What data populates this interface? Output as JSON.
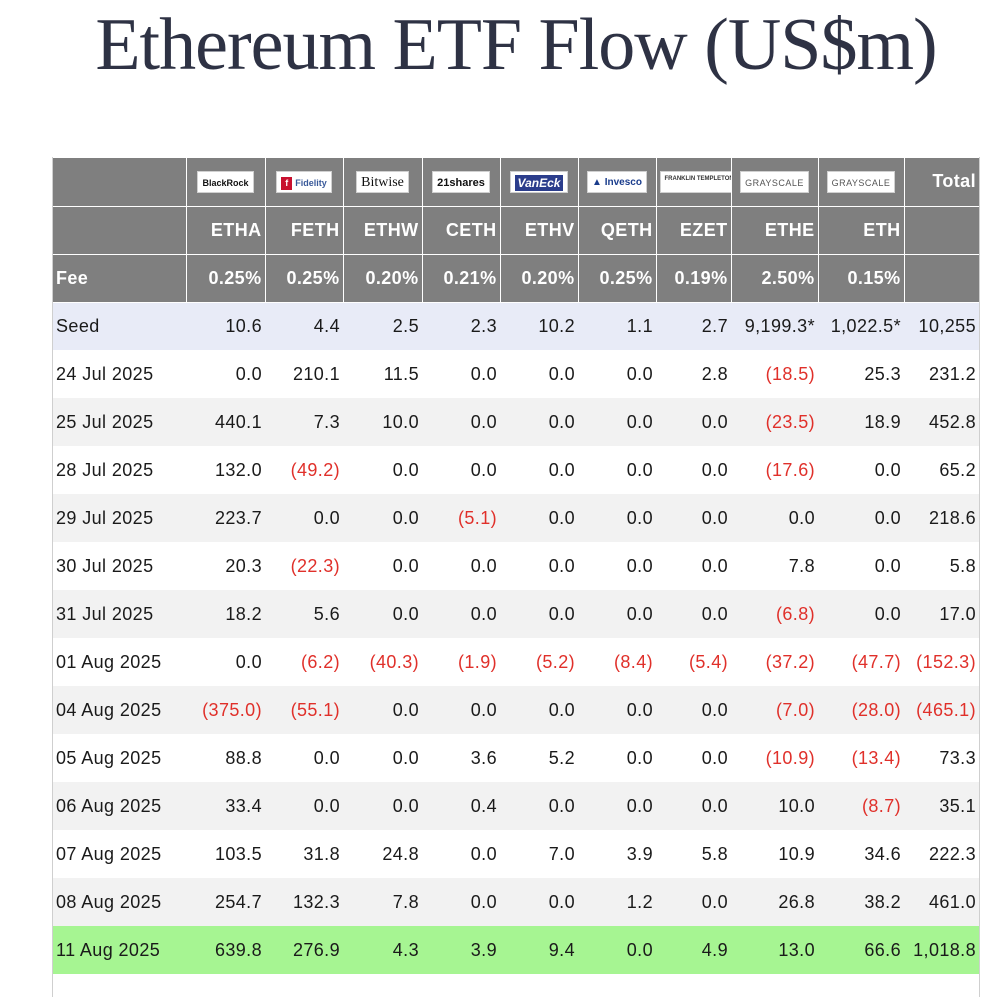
{
  "title": "Ethereum ETF Flow (US$m)",
  "colors": {
    "header_bg": "#7f7f7f",
    "seed_bg": "#e8ebf7",
    "alt_row_bg": "#f2f2f2",
    "highlight_row_bg": "#a6f592",
    "negative_text": "#e0302a"
  },
  "issuers": [
    {
      "logo": "BlackRock"
    },
    {
      "logo": "Fidelity"
    },
    {
      "logo": "Bitwise"
    },
    {
      "logo": "21shares"
    },
    {
      "logo": "VanEck"
    },
    {
      "logo": "Invesco"
    },
    {
      "logo": "FRANKLIN TEMPLETON"
    },
    {
      "logo": "GRAYSCALE"
    },
    {
      "logo": "GRAYSCALE"
    }
  ],
  "total_label": "Total",
  "tickers": [
    "ETHA",
    "FETH",
    "ETHW",
    "CETH",
    "ETHV",
    "QETH",
    "EZET",
    "ETHE",
    "ETH"
  ],
  "fee_label": "Fee",
  "fees": [
    "0.25%",
    "0.25%",
    "0.20%",
    "0.21%",
    "0.20%",
    "0.25%",
    "0.19%",
    "2.50%",
    "0.15%"
  ],
  "rows": [
    {
      "date": "Seed",
      "values": [
        "10.6",
        "4.4",
        "2.5",
        "2.3",
        "10.2",
        "1.1",
        "2.7",
        "9,199.3*",
        "1,022.5*"
      ],
      "total": "10,255"
    },
    {
      "date": "24 Jul 2025",
      "values": [
        "0.0",
        "210.1",
        "11.5",
        "0.0",
        "0.0",
        "0.0",
        "2.8",
        "(18.5)",
        "25.3"
      ],
      "total": "231.2"
    },
    {
      "date": "25 Jul 2025",
      "values": [
        "440.1",
        "7.3",
        "10.0",
        "0.0",
        "0.0",
        "0.0",
        "0.0",
        "(23.5)",
        "18.9"
      ],
      "total": "452.8"
    },
    {
      "date": "28 Jul 2025",
      "values": [
        "132.0",
        "(49.2)",
        "0.0",
        "0.0",
        "0.0",
        "0.0",
        "0.0",
        "(17.6)",
        "0.0"
      ],
      "total": "65.2"
    },
    {
      "date": "29 Jul 2025",
      "values": [
        "223.7",
        "0.0",
        "0.0",
        "(5.1)",
        "0.0",
        "0.0",
        "0.0",
        "0.0",
        "0.0"
      ],
      "total": "218.6"
    },
    {
      "date": "30 Jul 2025",
      "values": [
        "20.3",
        "(22.3)",
        "0.0",
        "0.0",
        "0.0",
        "0.0",
        "0.0",
        "7.8",
        "0.0"
      ],
      "total": "5.8"
    },
    {
      "date": "31 Jul 2025",
      "values": [
        "18.2",
        "5.6",
        "0.0",
        "0.0",
        "0.0",
        "0.0",
        "0.0",
        "(6.8)",
        "0.0"
      ],
      "total": "17.0"
    },
    {
      "date": "01 Aug 2025",
      "values": [
        "0.0",
        "(6.2)",
        "(40.3)",
        "(1.9)",
        "(5.2)",
        "(8.4)",
        "(5.4)",
        "(37.2)",
        "(47.7)"
      ],
      "total": "(152.3)"
    },
    {
      "date": "04 Aug 2025",
      "values": [
        "(375.0)",
        "(55.1)",
        "0.0",
        "0.0",
        "0.0",
        "0.0",
        "0.0",
        "(7.0)",
        "(28.0)"
      ],
      "total": "(465.1)"
    },
    {
      "date": "05 Aug 2025",
      "values": [
        "88.8",
        "0.0",
        "0.0",
        "3.6",
        "5.2",
        "0.0",
        "0.0",
        "(10.9)",
        "(13.4)"
      ],
      "total": "73.3"
    },
    {
      "date": "06 Aug 2025",
      "values": [
        "33.4",
        "0.0",
        "0.0",
        "0.4",
        "0.0",
        "0.0",
        "0.0",
        "10.0",
        "(8.7)"
      ],
      "total": "35.1"
    },
    {
      "date": "07 Aug 2025",
      "values": [
        "103.5",
        "31.8",
        "24.8",
        "0.0",
        "7.0",
        "3.9",
        "5.8",
        "10.9",
        "34.6"
      ],
      "total": "222.3"
    },
    {
      "date": "08 Aug 2025",
      "values": [
        "254.7",
        "132.3",
        "7.8",
        "0.0",
        "0.0",
        "1.2",
        "0.0",
        "26.8",
        "38.2"
      ],
      "total": "461.0"
    },
    {
      "date": "11 Aug 2025",
      "values": [
        "639.8",
        "276.9",
        "4.3",
        "3.9",
        "9.4",
        "0.0",
        "4.9",
        "13.0",
        "66.6"
      ],
      "total": "1,018.8"
    }
  ]
}
